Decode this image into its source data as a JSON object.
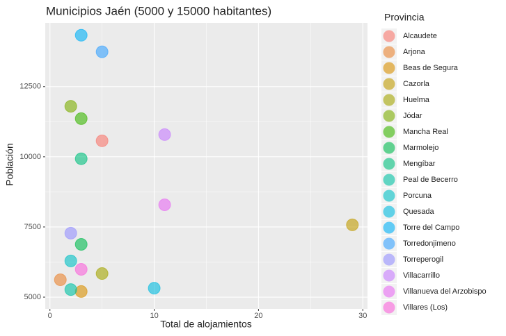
{
  "chart_data": {
    "type": "scatter",
    "title": "Municipios Jaén (5000 y 15000 habitantes)",
    "x_label": "Total de alojamientos",
    "y_label": "Población",
    "legend_title": "Provincia",
    "xlim": [
      -0.45,
      30.45
    ],
    "ylim": [
      4580,
      14770
    ],
    "xticks": [
      0,
      10,
      20,
      30
    ],
    "yticks": [
      5000,
      7500,
      10000,
      12500
    ],
    "grid": true,
    "legend": "right",
    "series": [
      {
        "name": "Alcaudete",
        "color": "#F8766D",
        "x": [
          5
        ],
        "values": [
          10570
        ]
      },
      {
        "name": "Arjona",
        "color": "#EA8331",
        "x": [
          1
        ],
        "values": [
          5620
        ]
      },
      {
        "name": "Beas de Segura",
        "color": "#D89000",
        "x": [
          3
        ],
        "values": [
          5200
        ]
      },
      {
        "name": "Cazorla",
        "color": "#C09B00",
        "x": [
          29
        ],
        "values": [
          7575
        ]
      },
      {
        "name": "Huelma",
        "color": "#A3A500",
        "x": [
          5
        ],
        "values": [
          5840
        ]
      },
      {
        "name": "Jódar",
        "color": "#7CAE00",
        "x": [
          2
        ],
        "values": [
          11800
        ]
      },
      {
        "name": "Mancha Real",
        "color": "#39B600",
        "x": [
          3
        ],
        "values": [
          11360
        ]
      },
      {
        "name": "Marmolejo",
        "color": "#00BB4E",
        "x": [
          3
        ],
        "values": [
          6880
        ]
      },
      {
        "name": "Mengíbar",
        "color": "#00BF7D",
        "x": [
          3
        ],
        "values": [
          9930
        ]
      },
      {
        "name": "Peal de Becerro",
        "color": "#00C1A3",
        "x": [
          2
        ],
        "values": [
          5270
        ]
      },
      {
        "name": "Porcuna",
        "color": "#00BFC4",
        "x": [
          2
        ],
        "values": [
          6290
        ]
      },
      {
        "name": "Quesada",
        "color": "#00BAE0",
        "x": [
          10
        ],
        "values": [
          5320
        ]
      },
      {
        "name": "Torre del Campo",
        "color": "#00B0F6",
        "x": [
          3
        ],
        "values": [
          14330
        ]
      },
      {
        "name": "Torredonjimeno",
        "color": "#35A2FF",
        "x": [
          5
        ],
        "values": [
          13740
        ]
      },
      {
        "name": "Torreperogil",
        "color": "#9590FF",
        "x": [
          2
        ],
        "values": [
          7280
        ]
      },
      {
        "name": "Villacarrillo",
        "color": "#C77CFF",
        "x": [
          11
        ],
        "values": [
          10790
        ]
      },
      {
        "name": "Villanueva del Arzobispo",
        "color": "#E76BF3",
        "x": [
          11
        ],
        "values": [
          8290
        ]
      },
      {
        "name": "Villares (Los)",
        "color": "#FA62DB",
        "x": [
          3
        ],
        "values": [
          5990
        ]
      }
    ]
  }
}
